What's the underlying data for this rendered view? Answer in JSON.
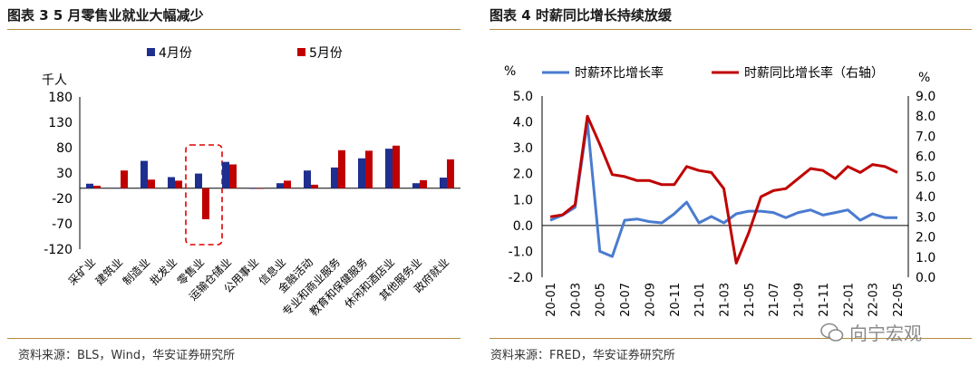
{
  "left": {
    "title": "图表 3 5 月零售业就业大幅减少",
    "source": "资料来源：BLS，Wind，华安证券研究所",
    "chart_data": {
      "type": "bar",
      "title": "图表 3 5 月零售业就业大幅减少",
      "ylabel": "千人",
      "ylim": [
        -120,
        180
      ],
      "yticks": [
        180,
        130,
        80,
        30,
        -20,
        -70,
        -120
      ],
      "categories": [
        "采矿业",
        "建筑业",
        "制造业",
        "批发业",
        "零售业",
        "运输仓储业",
        "公用事业",
        "信息业",
        "金融活动",
        "专业和商业服务",
        "教育和保健服务",
        "休闲和酒店业",
        "其他服务业",
        "政府就业"
      ],
      "series": [
        {
          "name": "4月份",
          "color": "#1f2f8f",
          "values": [
            9,
            1,
            54,
            22,
            29,
            52,
            0,
            10,
            35,
            41,
            59,
            78,
            10,
            21
          ]
        },
        {
          "name": "5月份",
          "color": "#c00000",
          "values": [
            5,
            35,
            17,
            15,
            -61,
            47,
            0,
            15,
            7,
            75,
            74,
            84,
            16,
            57
          ]
        }
      ],
      "highlight": "零售业"
    }
  },
  "right": {
    "title": "图表 4 时薪同比增长持续放缓",
    "source": "资料来源：FRED，华安证券研究所",
    "chart_data": {
      "type": "line",
      "title": "图表 4 时薪同比增长持续放缓",
      "ylabel_left": "%",
      "ylabel_right": "%",
      "ylim_left": [
        -2.0,
        5.0
      ],
      "yticks_left": [
        "5.0",
        "4.0",
        "3.0",
        "2.0",
        "1.0",
        "0.0",
        "-1.0",
        "-2.0"
      ],
      "ylim_right": [
        0.0,
        9.0
      ],
      "yticks_right": [
        "9.0",
        "8.0",
        "7.0",
        "6.0",
        "5.0",
        "4.0",
        "3.0",
        "2.0",
        "1.0",
        "0.0"
      ],
      "x": [
        "2020-01",
        "2020-02",
        "2020-03",
        "2020-04",
        "2020-05",
        "2020-06",
        "2020-07",
        "2020-08",
        "2020-09",
        "2020-10",
        "2020-11",
        "2020-12",
        "2021-01",
        "2021-02",
        "2021-03",
        "2021-04",
        "2021-05",
        "2021-06",
        "2021-07",
        "2021-08",
        "2021-09",
        "2021-10",
        "2021-11",
        "2021-12",
        "2022-01",
        "2022-02",
        "2022-03",
        "2022-04",
        "2022-05"
      ],
      "xticklabels": [
        "20-01",
        "20-03",
        "20-05",
        "20-07",
        "20-09",
        "20-11",
        "21-01",
        "21-03",
        "21-05",
        "21-07",
        "21-09",
        "21-11",
        "22-01",
        "22-03",
        "22-05"
      ],
      "series": [
        {
          "name": "时薪环比增长率",
          "axis": "left",
          "color": "#4a7bd0",
          "values": [
            0.2,
            0.4,
            0.7,
            4.0,
            -1.0,
            -1.2,
            0.2,
            0.25,
            0.15,
            0.1,
            0.45,
            0.9,
            0.1,
            0.35,
            0.1,
            0.45,
            0.55,
            0.55,
            0.5,
            0.3,
            0.5,
            0.6,
            0.4,
            0.5,
            0.6,
            0.2,
            0.45,
            0.3,
            0.3
          ]
        },
        {
          "name": "时薪同比增长率（右轴）",
          "axis": "right",
          "color": "#c00000",
          "values": [
            3.0,
            3.1,
            3.6,
            8.0,
            6.6,
            5.1,
            5.0,
            4.8,
            4.8,
            4.6,
            4.6,
            5.5,
            5.3,
            5.2,
            4.4,
            0.7,
            2.2,
            4.0,
            4.3,
            4.4,
            4.9,
            5.4,
            5.3,
            4.9,
            5.5,
            5.2,
            5.6,
            5.5,
            5.2
          ]
        }
      ]
    }
  },
  "watermark": "向宁宏观"
}
